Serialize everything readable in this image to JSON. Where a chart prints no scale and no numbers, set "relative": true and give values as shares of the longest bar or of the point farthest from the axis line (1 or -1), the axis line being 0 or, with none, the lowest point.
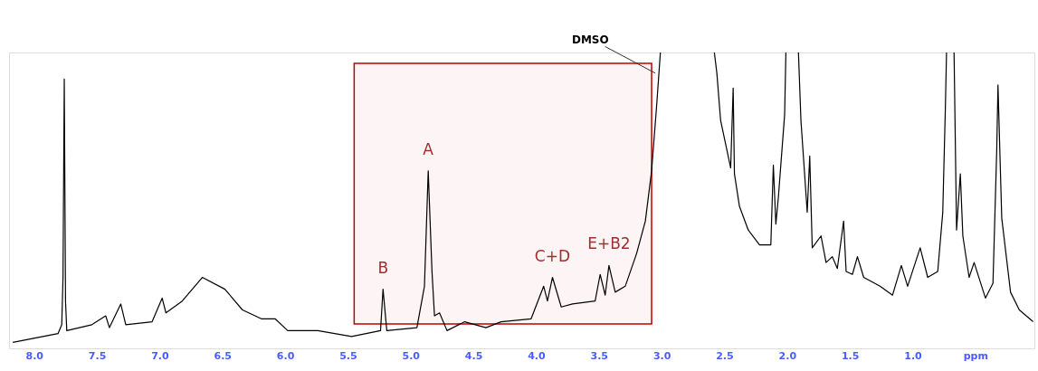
{
  "chart_data": {
    "type": "line",
    "relative": true,
    "xlim": [
      8.2,
      0.03
    ],
    "xticks": [
      {
        "value": 8,
        "label": "8.0"
      },
      7.5,
      {
        "value": 7,
        "label": "7.0"
      },
      6.5,
      {
        "value": 6,
        "label": "6.0"
      },
      5.5,
      {
        "value": 5,
        "label": "5.0"
      },
      4.5,
      {
        "value": 4,
        "label": "4.0"
      },
      3.5,
      {
        "value": 3,
        "label": "3.0"
      },
      2.5,
      {
        "value": 2,
        "label": "2.0"
      },
      1.5,
      {
        "value": 1,
        "label": "1.0"
      },
      {
        "value": 0.5,
        "label": "ppm"
      }
    ],
    "grid": false,
    "marker": "none",
    "line_style": "solid",
    "bands": [
      {
        "axis": "x",
        "from": 5.45,
        "to": 3.08,
        "color": "#c00000"
      }
    ],
    "annotations": [
      {
        "text": "A",
        "x": 4.86,
        "y": 0.6
      },
      {
        "text": "B",
        "x": 5.22,
        "y": 0.2
      },
      {
        "text": "C+D",
        "x": 3.87,
        "y": 0.24
      },
      {
        "text": "E+B2",
        "x": 3.42,
        "y": 0.28
      },
      {
        "text": "DMSO",
        "x": 3.05,
        "y": 0.93
      }
    ],
    "series": [
      {
        "color": "#000000",
        "x": [
          8.17,
          7.81,
          7.78,
          7.77,
          7.76,
          7.75,
          7.74,
          7.54,
          7.43,
          7.4,
          7.31,
          7.27,
          7.06,
          6.98,
          6.95,
          6.82,
          6.66,
          6.48,
          6.34,
          6.19,
          6.08,
          5.98,
          5.74,
          5.47,
          5.24,
          5.22,
          5.19,
          4.95,
          4.89,
          4.86,
          4.83,
          4.81,
          4.77,
          4.71,
          4.57,
          4.4,
          4.28,
          4.04,
          3.94,
          3.91,
          3.87,
          3.8,
          3.71,
          3.53,
          3.49,
          3.45,
          3.42,
          3.37,
          3.29,
          3.2,
          3.13,
          3.08,
          3.04,
          3.01,
          2.8,
          2.58,
          2.56,
          2.53,
          2.45,
          2.43,
          2.42,
          2.38,
          2.31,
          2.22,
          2.13,
          2.11,
          2.09,
          2.07,
          2.02,
          2.01,
          1.96,
          1.91,
          1.89,
          1.84,
          1.82,
          1.8,
          1.73,
          1.69,
          1.64,
          1.6,
          1.55,
          1.53,
          1.48,
          1.44,
          1.39,
          1.26,
          1.16,
          1.09,
          1.04,
          0.94,
          0.88,
          0.8,
          0.76,
          0.74,
          0.73,
          0.71,
          0.67,
          0.65,
          0.62,
          0.6,
          0.55,
          0.51,
          0.42,
          0.36,
          0.33,
          0.32,
          0.29,
          0.22,
          0.15,
          0.04
        ],
        "values": [
          0.02,
          0.05,
          0.08,
          0.24,
          0.91,
          0.16,
          0.06,
          0.08,
          0.11,
          0.07,
          0.15,
          0.08,
          0.09,
          0.17,
          0.12,
          0.16,
          0.24,
          0.2,
          0.13,
          0.1,
          0.1,
          0.06,
          0.06,
          0.04,
          0.06,
          0.2,
          0.06,
          0.07,
          0.21,
          0.6,
          0.26,
          0.11,
          0.12,
          0.06,
          0.09,
          0.07,
          0.09,
          0.1,
          0.21,
          0.16,
          0.24,
          0.14,
          0.15,
          0.16,
          0.25,
          0.18,
          0.28,
          0.19,
          0.21,
          0.32,
          0.43,
          0.6,
          0.82,
          1.0,
          null,
          1.0,
          0.93,
          0.77,
          0.61,
          0.88,
          0.59,
          0.48,
          0.4,
          0.35,
          0.35,
          0.62,
          0.42,
          0.51,
          0.79,
          1.0,
          null,
          1.0,
          0.77,
          0.46,
          0.65,
          0.34,
          0.38,
          0.29,
          0.31,
          0.27,
          0.43,
          0.26,
          0.25,
          0.31,
          0.24,
          0.21,
          0.18,
          0.28,
          0.21,
          0.34,
          0.24,
          0.26,
          0.46,
          0.8,
          1.0,
          null,
          1.0,
          0.4,
          0.59,
          0.38,
          0.24,
          0.29,
          0.17,
          0.22,
          0.67,
          0.89,
          0.44,
          0.19,
          0.13,
          0.09
        ]
      }
    ]
  }
}
